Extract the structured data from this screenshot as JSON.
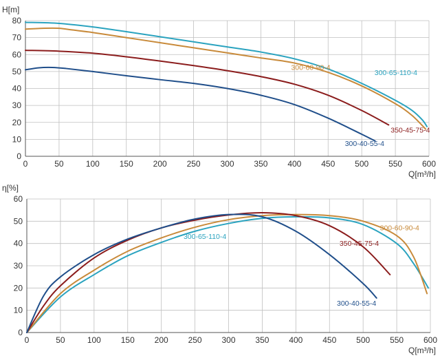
{
  "chart_data": [
    {
      "type": "line",
      "title": "",
      "ylabel": "H[m]",
      "xlabel": "Q[m³/h]",
      "xlim": [
        0,
        600
      ],
      "ylim": [
        0,
        80
      ],
      "xticks": [
        0,
        50,
        100,
        150,
        200,
        250,
        300,
        350,
        400,
        450,
        500,
        550,
        600
      ],
      "yticks": [
        0,
        10,
        20,
        30,
        40,
        50,
        60,
        70,
        80
      ],
      "grid": true,
      "legend": "inline labels",
      "series": [
        {
          "name": "300-65-110-4",
          "color": "#2aa3bf",
          "x": [
            0,
            50,
            100,
            150,
            200,
            250,
            300,
            350,
            400,
            450,
            500,
            550,
            575,
            590,
            597
          ],
          "y": [
            79,
            78.4,
            76.3,
            73.5,
            70.5,
            67.5,
            64.5,
            61.5,
            57.5,
            51.5,
            43,
            33,
            27,
            21.5,
            17.5
          ]
        },
        {
          "name": "300-60-90-4",
          "color": "#c88a3a",
          "x": [
            0,
            25,
            50,
            70,
            100,
            150,
            200,
            250,
            300,
            350,
            400,
            450,
            500,
            550,
            575,
            595
          ],
          "y": [
            75,
            75.5,
            75.5,
            74.5,
            73,
            70,
            67,
            64,
            61,
            58,
            55,
            49.5,
            41.5,
            31,
            24,
            16
          ]
        },
        {
          "name": "350-45-75-4",
          "color": "#8b1c1c",
          "x": [
            0,
            50,
            100,
            150,
            200,
            250,
            300,
            350,
            400,
            450,
            500,
            540
          ],
          "y": [
            62.5,
            62,
            60.8,
            58.7,
            56.2,
            53.5,
            50.5,
            47,
            42.5,
            36,
            27,
            18.5
          ]
        },
        {
          "name": "300-40-55-4",
          "color": "#1f4e8a",
          "x": [
            0,
            20,
            40,
            60,
            100,
            150,
            200,
            250,
            300,
            350,
            400,
            450,
            500,
            520
          ],
          "y": [
            51,
            52.2,
            52.4,
            51.8,
            50,
            47.5,
            45.2,
            43,
            40,
            36,
            30.5,
            22.5,
            13,
            9
          ]
        }
      ],
      "labels": [
        {
          "text": "300-65-110-4",
          "series": "300-65-110-4",
          "at": [
            519,
            48
          ]
        },
        {
          "text": "300-60-90-4",
          "series": "300-60-90-4",
          "at": [
            395,
            51
          ]
        },
        {
          "text": "350-45-75-4",
          "series": "350-45-75-4",
          "at": [
            543,
            14
          ]
        },
        {
          "text": "300-40-55-4",
          "series": "300-40-55-4",
          "at": [
            475,
            6
          ]
        }
      ]
    },
    {
      "type": "line",
      "title": "",
      "ylabel": "η[%]",
      "xlabel": "Q[m³/h]",
      "xlim": [
        0,
        600
      ],
      "ylim": [
        0,
        60
      ],
      "xticks": [
        0,
        50,
        100,
        150,
        200,
        250,
        300,
        350,
        400,
        450,
        500,
        550,
        600
      ],
      "yticks": [
        0,
        10,
        20,
        30,
        40,
        50,
        60
      ],
      "grid": true,
      "legend": "inline labels",
      "series": [
        {
          "name": "300-65-110-4",
          "color": "#2aa3bf",
          "x": [
            0,
            50,
            100,
            150,
            200,
            250,
            300,
            350,
            400,
            450,
            500,
            550,
            575,
            597
          ],
          "y": [
            0,
            16,
            26,
            34.5,
            40.5,
            45.5,
            49,
            51.3,
            52,
            51.5,
            48.5,
            40,
            31,
            20
          ]
        },
        {
          "name": "300-60-90-4",
          "color": "#c88a3a",
          "x": [
            0,
            50,
            100,
            150,
            200,
            250,
            300,
            350,
            400,
            450,
            500,
            550,
            575,
            595
          ],
          "y": [
            0,
            17.5,
            28,
            36.5,
            42.5,
            47.3,
            50.7,
            52.5,
            53,
            52.5,
            50,
            43.5,
            34,
            17.5
          ]
        },
        {
          "name": "350-45-75-4",
          "color": "#8b1c1c",
          "x": [
            0,
            25,
            50,
            100,
            150,
            200,
            250,
            300,
            350,
            400,
            450,
            500,
            540
          ],
          "y": [
            0,
            12,
            21,
            33.5,
            41.5,
            47,
            50.5,
            52.8,
            53.8,
            52.5,
            48,
            38.5,
            26
          ]
        },
        {
          "name": "300-40-55-4",
          "color": "#1f4e8a",
          "x": [
            0,
            25,
            50,
            100,
            150,
            200,
            250,
            300,
            350,
            400,
            450,
            500,
            520
          ],
          "y": [
            0,
            16.5,
            25,
            35,
            42,
            47,
            51,
            53,
            52,
            45.5,
            35,
            22,
            15.5
          ]
        }
      ],
      "labels": [
        {
          "text": "300-65-110-4",
          "series": "300-65-110-4",
          "at": [
            233,
            42
          ]
        },
        {
          "text": "300-60-90-4",
          "series": "300-60-90-4",
          "at": [
            525,
            46
          ]
        },
        {
          "text": "350-45-75-4",
          "series": "350-45-75-4",
          "at": [
            465,
            39
          ]
        },
        {
          "text": "300-40-55-4",
          "series": "300-40-55-4",
          "at": [
            461,
            12
          ]
        }
      ]
    }
  ]
}
